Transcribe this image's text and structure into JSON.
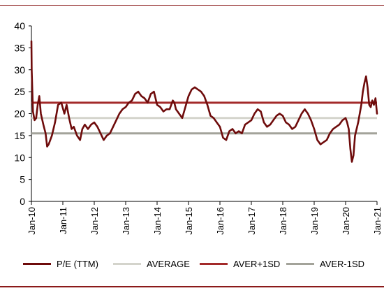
{
  "chart_data": {
    "type": "line",
    "ylim": [
      0,
      40
    ],
    "yticks": [
      "0",
      "5",
      "10",
      "15",
      "20",
      "25",
      "30",
      "35",
      "40"
    ],
    "xticks": [
      "Jan-10",
      "Jan-11",
      "Jan-12",
      "Jan-13",
      "Jan-14",
      "Jan-15",
      "Jan-16",
      "Jan-17",
      "Jan-18",
      "Jan-19",
      "Jan-20",
      "Jan-21"
    ],
    "series": [
      {
        "name": "P/E (TTM)",
        "color": "#6e0b0b",
        "x": [
          2010.0,
          2010.01,
          2010.05,
          2010.1,
          2010.15,
          2010.2,
          2010.25,
          2010.3,
          2010.38,
          2010.45,
          2010.5,
          2010.55,
          2010.65,
          2010.75,
          2010.85,
          2010.95,
          2011.05,
          2011.12,
          2011.2,
          2011.28,
          2011.35,
          2011.45,
          2011.55,
          2011.62,
          2011.7,
          2011.8,
          2011.9,
          2012.0,
          2012.1,
          2012.2,
          2012.3,
          2012.4,
          2012.5,
          2012.6,
          2012.7,
          2012.8,
          2012.9,
          2013.0,
          2013.1,
          2013.2,
          2013.3,
          2013.4,
          2013.5,
          2013.6,
          2013.7,
          2013.8,
          2013.9,
          2014.0,
          2014.1,
          2014.2,
          2014.3,
          2014.4,
          2014.5,
          2014.55,
          2014.6,
          2014.7,
          2014.8,
          2014.9,
          2015.0,
          2015.1,
          2015.2,
          2015.3,
          2015.4,
          2015.5,
          2015.6,
          2015.7,
          2015.8,
          2015.9,
          2016.0,
          2016.1,
          2016.2,
          2016.3,
          2016.4,
          2016.5,
          2016.6,
          2016.7,
          2016.8,
          2016.9,
          2017.0,
          2017.1,
          2017.2,
          2017.3,
          2017.4,
          2017.5,
          2017.6,
          2017.7,
          2017.8,
          2017.9,
          2018.0,
          2018.1,
          2018.2,
          2018.3,
          2018.4,
          2018.5,
          2018.6,
          2018.7,
          2018.8,
          2018.9,
          2019.0,
          2019.1,
          2019.2,
          2019.3,
          2019.4,
          2019.5,
          2019.6,
          2019.7,
          2019.8,
          2019.9,
          2020.0,
          2020.05,
          2020.1,
          2020.15,
          2020.2,
          2020.25,
          2020.3,
          2020.4,
          2020.5,
          2020.55,
          2020.6,
          2020.65,
          2020.7,
          2020.75,
          2020.8,
          2020.85,
          2020.9,
          2020.95,
          2021.0
        ],
        "values": [
          36.5,
          30,
          20.5,
          18.5,
          19,
          22,
          24,
          20,
          17.5,
          15.5,
          12.5,
          13,
          15,
          18,
          22,
          22.5,
          20,
          22,
          19,
          16.5,
          17,
          15,
          14,
          16.5,
          17.5,
          16.5,
          17.5,
          18,
          17,
          15.5,
          14,
          15,
          15.5,
          17,
          18.5,
          20,
          21,
          21.5,
          22.5,
          23,
          24.5,
          25,
          24,
          23.5,
          22.5,
          24.5,
          25,
          22,
          21.5,
          20.5,
          21,
          21,
          23,
          22.5,
          21,
          20,
          19,
          21.5,
          24,
          25.5,
          26,
          25.5,
          25,
          24,
          22,
          19.5,
          19,
          18,
          17,
          14.5,
          14,
          16,
          16.5,
          15.5,
          16,
          15.5,
          17.5,
          18,
          18.5,
          20,
          21,
          20.5,
          18,
          17,
          17.5,
          18.5,
          19.5,
          20,
          19.5,
          18,
          17.5,
          16.5,
          17,
          18.5,
          20,
          21,
          20,
          18.5,
          16.5,
          14,
          13,
          13.5,
          14,
          15.5,
          16.5,
          17,
          17.5,
          18.5,
          19,
          18,
          16.5,
          12,
          9,
          10.5,
          15,
          18,
          22,
          25,
          27,
          28.5,
          26,
          22,
          21.5,
          23,
          22,
          23.5,
          20
        ]
      },
      {
        "name": "AVERAGE",
        "color": "#d4d4cc",
        "values": [
          19.0,
          19.0
        ]
      },
      {
        "name": "AVER+1SD",
        "color": "#a32a2a",
        "values": [
          22.5,
          22.5
        ]
      },
      {
        "name": "AVER-1SD",
        "color": "#a3a39a",
        "values": [
          15.5,
          15.5
        ]
      }
    ]
  }
}
